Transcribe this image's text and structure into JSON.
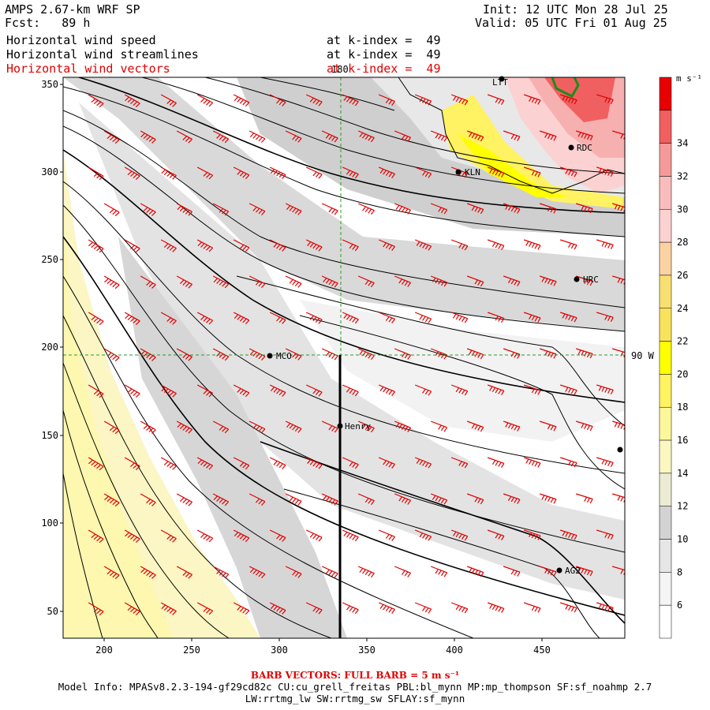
{
  "header": {
    "title": "AMPS 2.67-km WRF SP",
    "forecast": "Fcst:   89 h",
    "init": "Init: 12 UTC Mon 28 Jul 25",
    "valid": "Valid: 05 UTC Fri 01 Aug 25",
    "fields": [
      {
        "name": "Horizontal wind speed",
        "level": "at k-index =  49",
        "color": "#000000"
      },
      {
        "name": "Horizontal wind streamlines",
        "level": "at k-index =  49",
        "color": "#000000"
      },
      {
        "name": "Horizontal wind vectors",
        "level": "at k-index =  49",
        "color": "#e00000"
      }
    ]
  },
  "map": {
    "x_ticks": [
      "200",
      "250",
      "300",
      "350",
      "400",
      "450"
    ],
    "y_ticks": [
      "50",
      "100",
      "150",
      "200",
      "250",
      "300",
      "350"
    ],
    "meridian_label": "180",
    "parallel_label": "90 W",
    "stations": [
      {
        "name": "LTT",
        "icon": "station-dot"
      },
      {
        "name": "RDC",
        "icon": "station-dot"
      },
      {
        "name": "KLN",
        "icon": "station-dot"
      },
      {
        "name": "HRC",
        "icon": "station-dot"
      },
      {
        "name": "MCO",
        "icon": "station-dot"
      },
      {
        "name": "Henry",
        "icon": "station-dot"
      },
      {
        "name": "AG2",
        "icon": "station-dot"
      },
      {
        "name": "",
        "icon": "station-dot"
      }
    ]
  },
  "colorbar": {
    "unit": "m s⁻¹",
    "levels": [
      {
        "label": "",
        "color": "#ffffff"
      },
      {
        "label": "6",
        "color": "#f4f4f4"
      },
      {
        "label": "8",
        "color": "#e6e6e6"
      },
      {
        "label": "10",
        "color": "#d3d3d3"
      },
      {
        "label": "12",
        "color": "#ecebd3"
      },
      {
        "label": "14",
        "color": "#fbf7c2"
      },
      {
        "label": "16",
        "color": "#fdf79c"
      },
      {
        "label": "18",
        "color": "#fff263"
      },
      {
        "label": "20",
        "color": "#ffff00"
      },
      {
        "label": "22",
        "color": "#f9e35c"
      },
      {
        "label": "24",
        "color": "#f7e071"
      },
      {
        "label": "26",
        "color": "#fbd2a2"
      },
      {
        "label": "28",
        "color": "#fcd1d1"
      },
      {
        "label": "30",
        "color": "#f9bcbc"
      },
      {
        "label": "32",
        "color": "#f59a9a"
      },
      {
        "label": "34",
        "color": "#f06060"
      },
      {
        "label": "",
        "color": "#e80000"
      }
    ]
  },
  "footer": {
    "barb_note": "BARB VECTORS:  FULL BARB = 5 m s⁻¹",
    "model_info": "Model Info: MPASv8.2.3-194-gf29cd82c CU:cu_grell_freitas PBL:bl_mynn MP:mp_thompson SF:sf_noahmp 2.7",
    "model_info2": "LW:rrtmg_lw SW:rrtmg_sw SFLAY:sf_mynn"
  }
}
